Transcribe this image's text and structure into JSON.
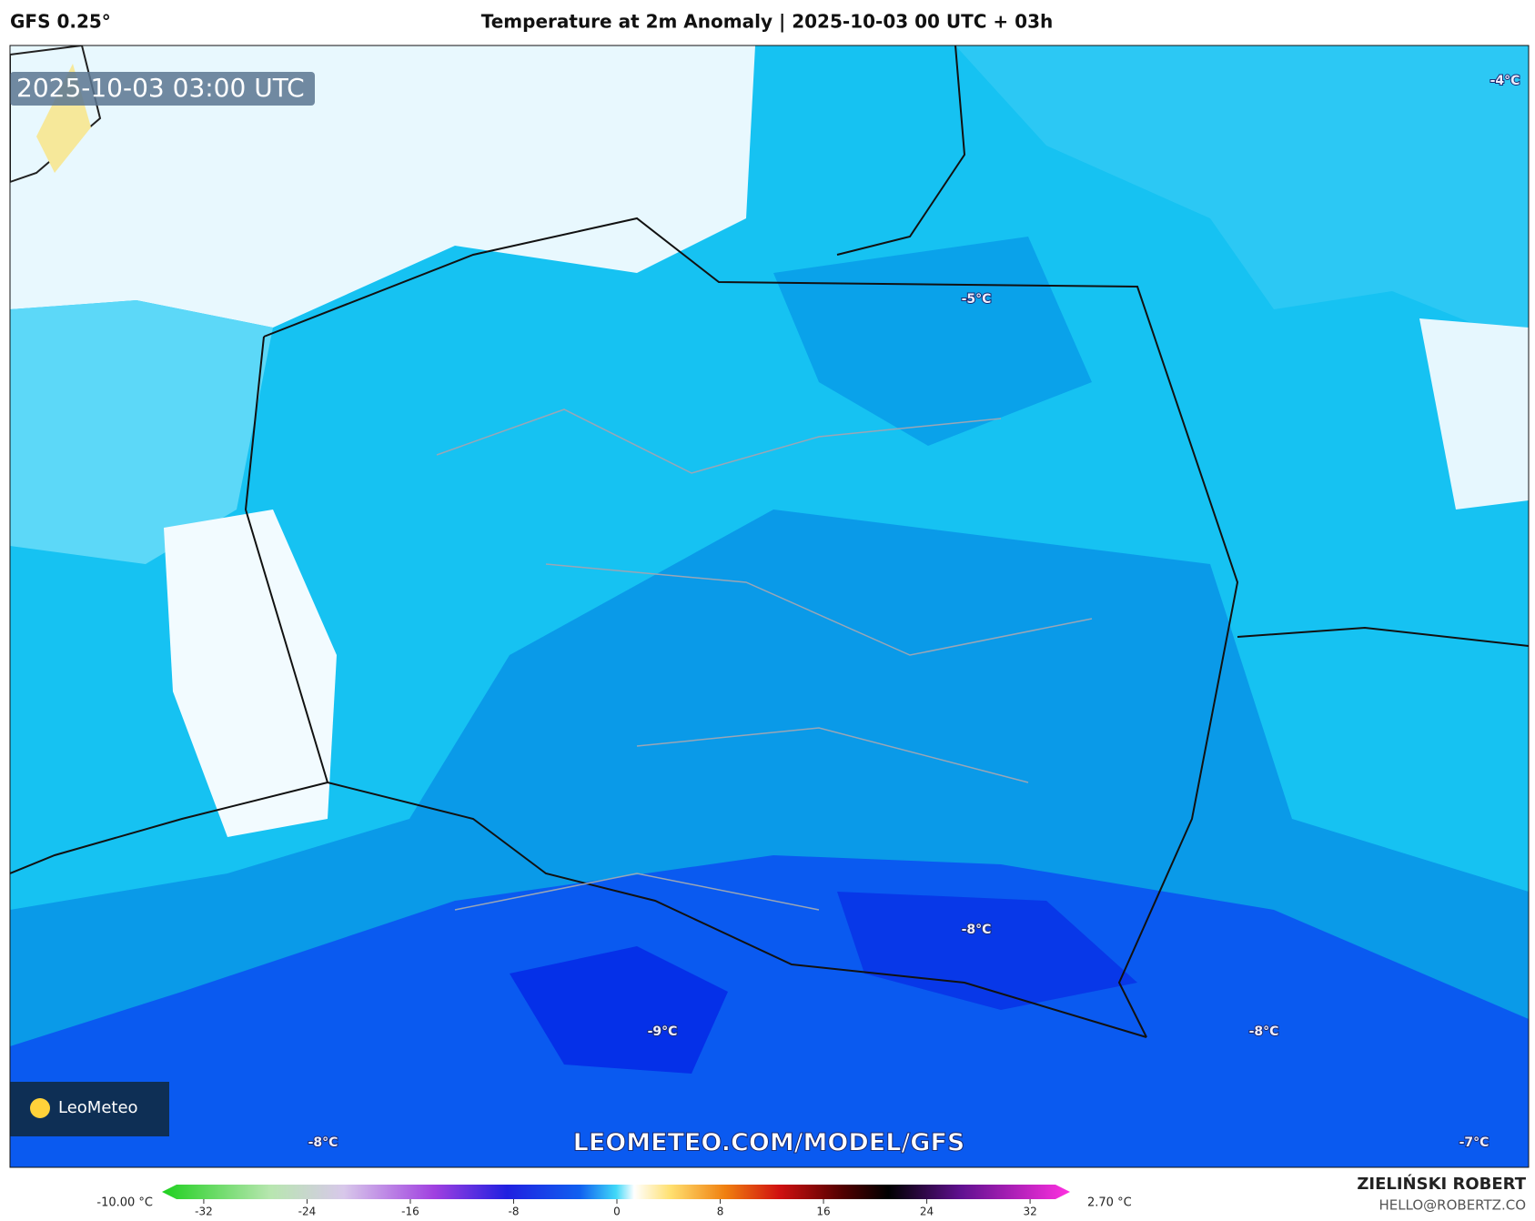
{
  "header": {
    "model": "GFS 0.25°",
    "title": "Temperature at 2m Anomaly | 2025-10-03 00 UTC + 03h"
  },
  "map": {
    "timestamp": "2025-10-03 03:00 UTC",
    "labels": [
      "-4°C",
      "-5°C",
      "-8°C",
      "-9°C",
      "-8°C",
      "-8°C",
      "-7°C"
    ],
    "logo": "LeoMeteo",
    "watermark": "LEOMETEO.COM/MODEL/GFS"
  },
  "colorbar": {
    "min_label": "-10.00 °C",
    "max_label": "2.70 °C",
    "ticks": [
      -32,
      -24,
      -16,
      -8,
      0,
      8,
      16,
      24,
      32
    ]
  },
  "footer": {
    "author": "ZIELIŃSKI ROBERT",
    "contact": "HELLO@ROBERTZ.CO"
  }
}
